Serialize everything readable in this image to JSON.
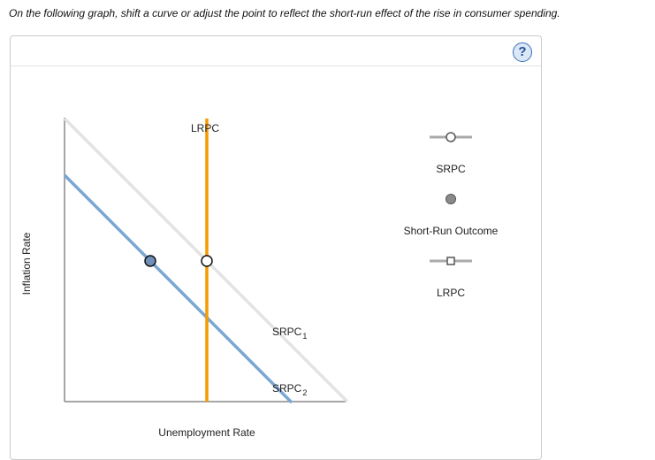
{
  "instruction": "On the following graph, shift a curve or adjust the point to reflect the short-run effect of the rise in consumer spending.",
  "help_button": {
    "label": "?",
    "icon": "question-mark-icon",
    "color": "#3a6fb5"
  },
  "graph": {
    "xlabel": "Unemployment Rate",
    "ylabel": "Inflation Rate",
    "curves": {
      "lrpc": {
        "label": "LRPC",
        "color": "#f59b00"
      },
      "srpc1": {
        "label": "SRPC",
        "sub": "1",
        "color": "#e3e3e3"
      },
      "srpc2": {
        "label": "SRPC",
        "sub": "2",
        "color": "#7aa6d3"
      }
    },
    "points": {
      "outcome_color": "#6f8fb9",
      "equilibrium_color": "#ffffff"
    }
  },
  "palette": {
    "title": "",
    "items": [
      {
        "label": "SRPC",
        "icon": "line-with-circle-handle-icon",
        "color": "#aaaaaa"
      },
      {
        "label": "Short-Run Outcome",
        "icon": "gray-dot-icon",
        "color": "#8a8a8a"
      },
      {
        "label": "LRPC",
        "icon": "line-with-square-handle-icon",
        "color": "#aaaaaa"
      }
    ]
  }
}
